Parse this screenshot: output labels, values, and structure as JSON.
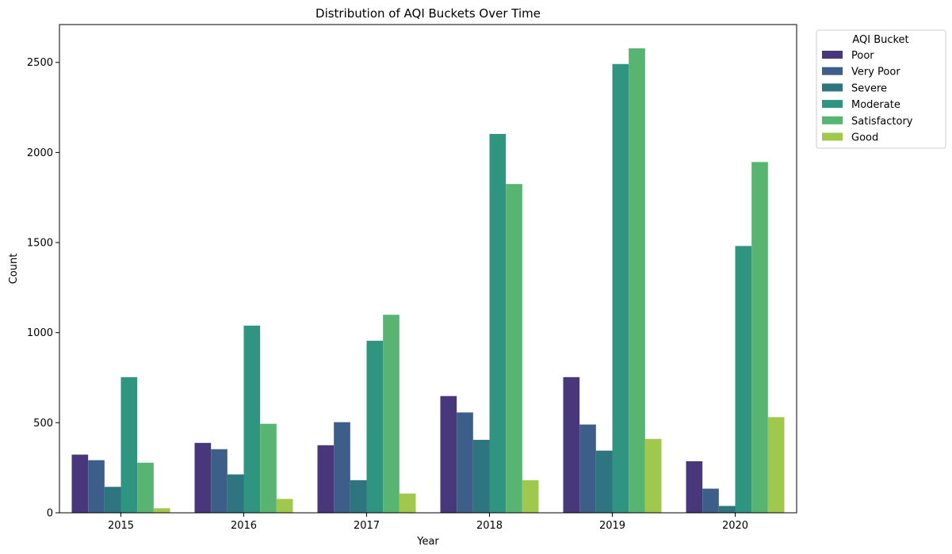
{
  "chart_data": {
    "type": "bar",
    "title": "Distribution of AQI Buckets Over Time",
    "xlabel": "Year",
    "ylabel": "Count",
    "categories": [
      "2015",
      "2016",
      "2017",
      "2018",
      "2019",
      "2020"
    ],
    "ylim": [
      0,
      2710
    ],
    "yticks": [
      0,
      500,
      1000,
      1500,
      2000,
      2500
    ],
    "grid": false,
    "legend": {
      "title": "AQI Bucket",
      "placement": "outside-top-right"
    },
    "series": [
      {
        "name": "Poor",
        "color": "#48377a",
        "values": [
          323,
          388,
          375,
          648,
          753,
          286
        ]
      },
      {
        "name": "Very Poor",
        "color": "#3e5e8a",
        "values": [
          292,
          353,
          503,
          557,
          490,
          134
        ]
      },
      {
        "name": "Severe",
        "color": "#2f7580",
        "values": [
          144,
          213,
          181,
          405,
          345,
          38
        ]
      },
      {
        "name": "Moderate",
        "color": "#2f9580",
        "values": [
          753,
          1039,
          955,
          2103,
          2491,
          1481
        ]
      },
      {
        "name": "Satisfactory",
        "color": "#57b571",
        "values": [
          278,
          494,
          1099,
          1825,
          2578,
          1947
        ]
      },
      {
        "name": "Good",
        "color": "#a0c84c",
        "values": [
          25,
          77,
          107,
          181,
          410,
          531
        ]
      }
    ]
  }
}
